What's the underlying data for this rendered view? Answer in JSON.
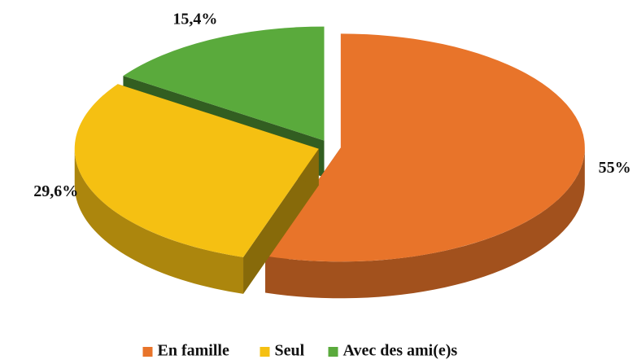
{
  "chart_data": {
    "type": "pie",
    "categories": [
      "En famille",
      "Seul",
      "Avec des ami(e)s"
    ],
    "values": [
      55,
      29.6,
      15.4
    ],
    "value_labels": [
      "55%",
      "29,6%",
      "15,4%"
    ],
    "colors": [
      "#e8742a",
      "#f5c012",
      "#5aaa3c"
    ],
    "legend": "bottom"
  }
}
